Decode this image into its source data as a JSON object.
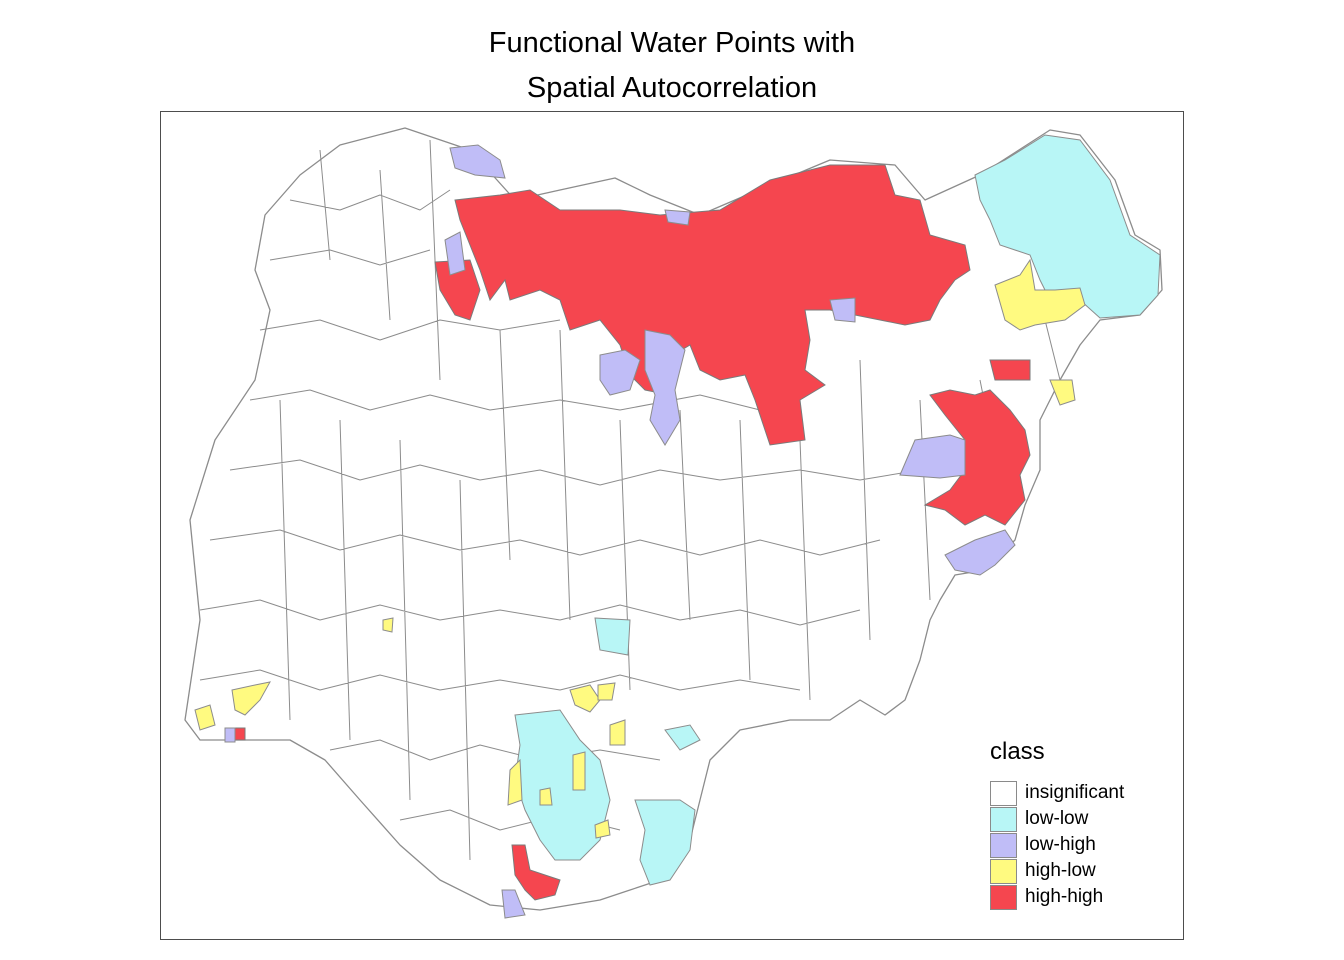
{
  "title": {
    "line1": "Functional Water Points with",
    "line2": "Spatial Autocorrelation"
  },
  "legend": {
    "title": "class",
    "items": [
      {
        "label": "insignificant",
        "color": "#ffffff"
      },
      {
        "label": "low-low",
        "color": "#b8f6f6"
      },
      {
        "label": "low-high",
        "color": "#c0bdf7"
      },
      {
        "label": "high-low",
        "color": "#fffa80"
      },
      {
        "label": "high-high",
        "color": "#f5464f"
      }
    ]
  },
  "colors": {
    "border": "#8c8c8c",
    "frame": "#4d4d4d"
  }
}
